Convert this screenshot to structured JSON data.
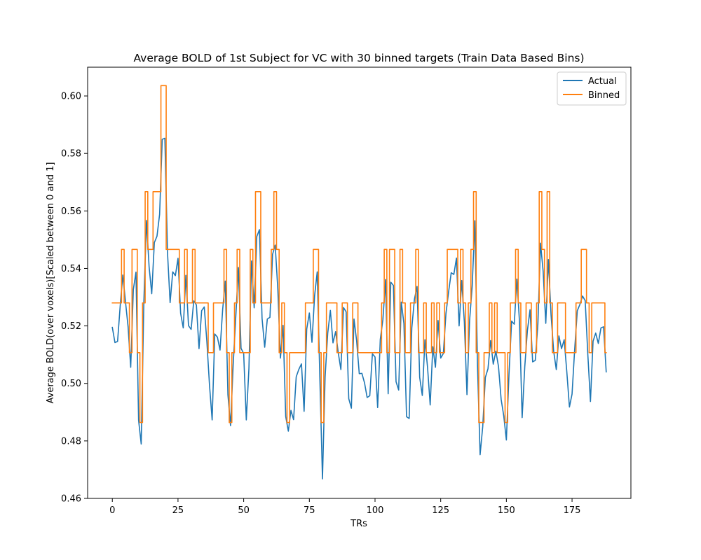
{
  "chart_data": {
    "type": "line",
    "title": "Average BOLD of 1st Subject for VC with 30 binned targets (Train Data Based Bins)",
    "xlabel": "TRs",
    "ylabel": "Average BOLD(over voxels)[Scaled between 0 and 1]",
    "xlim": [
      -9.4,
      197.4
    ],
    "ylim": [
      0.46,
      0.61
    ],
    "xticks": [
      0,
      25,
      50,
      75,
      100,
      125,
      150,
      175
    ],
    "xtick_labels": [
      "0",
      "25",
      "50",
      "75",
      "100",
      "125",
      "150",
      "175"
    ],
    "yticks": [
      0.46,
      0.48,
      0.5,
      0.52,
      0.54,
      0.56,
      0.58,
      0.6
    ],
    "ytick_labels": [
      "0.46",
      "0.48",
      "0.50",
      "0.52",
      "0.54",
      "0.56",
      "0.58",
      "0.60"
    ],
    "grid": false,
    "legend_position": "top-right",
    "series": [
      {
        "name": "Actual",
        "color": "#1f77b4",
        "step": false,
        "values": [
          0.5195,
          0.5142,
          0.5146,
          0.527,
          0.5377,
          0.5285,
          0.5197,
          0.5056,
          0.5327,
          0.5387,
          0.4872,
          0.4789,
          0.5283,
          0.5567,
          0.5406,
          0.5312,
          0.549,
          0.5512,
          0.5588,
          0.5849,
          0.5853,
          0.5456,
          0.5281,
          0.5388,
          0.5375,
          0.5435,
          0.5244,
          0.5193,
          0.5376,
          0.5201,
          0.5188,
          0.5287,
          0.5273,
          0.5121,
          0.5253,
          0.5266,
          0.5144,
          0.4993,
          0.4873,
          0.5172,
          0.5161,
          0.5116,
          0.5257,
          0.5356,
          0.4961,
          0.4853,
          0.5064,
          0.5232,
          0.5403,
          0.5122,
          0.5104,
          0.4873,
          0.5052,
          0.5426,
          0.5263,
          0.5511,
          0.5535,
          0.5226,
          0.5126,
          0.5224,
          0.523,
          0.5449,
          0.5481,
          0.5328,
          0.5088,
          0.5202,
          0.4885,
          0.4834,
          0.4906,
          0.4874,
          0.5023,
          0.5049,
          0.5068,
          0.4903,
          0.5189,
          0.5245,
          0.5143,
          0.5305,
          0.5388,
          0.5017,
          0.4668,
          0.5023,
          0.5175,
          0.5254,
          0.5141,
          0.518,
          0.5107,
          0.5048,
          0.5264,
          0.5249,
          0.4947,
          0.4914,
          0.5224,
          0.5148,
          0.5034,
          0.5035,
          0.5002,
          0.4951,
          0.4957,
          0.5103,
          0.5092,
          0.4916,
          0.5153,
          0.5222,
          0.5361,
          0.4964,
          0.5352,
          0.5341,
          0.5006,
          0.4977,
          0.5283,
          0.5208,
          0.4884,
          0.4878,
          0.5193,
          0.5293,
          0.5337,
          0.5021,
          0.4958,
          0.5152,
          0.5055,
          0.4925,
          0.5128,
          0.5056,
          0.5219,
          0.5088,
          0.5104,
          0.5243,
          0.5318,
          0.5385,
          0.5379,
          0.5436,
          0.52,
          0.5358,
          0.5214,
          0.4961,
          0.5219,
          0.534,
          0.5566,
          0.5065,
          0.4752,
          0.485,
          0.5021,
          0.5051,
          0.5149,
          0.5067,
          0.5112,
          0.5059,
          0.4945,
          0.4887,
          0.4803,
          0.5033,
          0.5217,
          0.5206,
          0.5363,
          0.5213,
          0.4881,
          0.5058,
          0.5184,
          0.5256,
          0.5075,
          0.508,
          0.5207,
          0.5488,
          0.5389,
          0.5209,
          0.5431,
          0.5239,
          0.5112,
          0.5048,
          0.5165,
          0.5121,
          0.5152,
          0.5041,
          0.4918,
          0.4963,
          0.5119,
          0.5253,
          0.5275,
          0.5304,
          0.5288,
          0.5101,
          0.4937,
          0.5147,
          0.5175,
          0.5139,
          0.5193,
          0.5197,
          0.504
        ]
      },
      {
        "name": "Binned",
        "color": "#ff7f0e",
        "step": true,
        "values": [
          0.528,
          0.528,
          0.528,
          0.528,
          0.5466,
          0.528,
          0.528,
          0.5107,
          0.5466,
          0.5466,
          0.5107,
          0.4864,
          0.528,
          0.5667,
          0.5466,
          0.5466,
          0.5667,
          0.5667,
          0.5667,
          0.6036,
          0.6036,
          0.5466,
          0.5466,
          0.5466,
          0.5466,
          0.5466,
          0.528,
          0.528,
          0.5466,
          0.528,
          0.528,
          0.5466,
          0.528,
          0.528,
          0.528,
          0.528,
          0.528,
          0.5107,
          0.5107,
          0.528,
          0.528,
          0.528,
          0.528,
          0.5466,
          0.5107,
          0.4864,
          0.5107,
          0.528,
          0.5466,
          0.5107,
          0.5107,
          0.5107,
          0.5107,
          0.5466,
          0.528,
          0.5667,
          0.5667,
          0.528,
          0.528,
          0.528,
          0.528,
          0.5466,
          0.5667,
          0.5466,
          0.5107,
          0.528,
          0.5107,
          0.4864,
          0.5107,
          0.5107,
          0.5107,
          0.5107,
          0.5107,
          0.5107,
          0.528,
          0.528,
          0.528,
          0.5466,
          0.5466,
          0.5107,
          0.4864,
          0.5107,
          0.528,
          0.528,
          0.528,
          0.528,
          0.5107,
          0.5107,
          0.528,
          0.528,
          0.5107,
          0.5107,
          0.528,
          0.528,
          0.5107,
          0.5107,
          0.5107,
          0.5107,
          0.5107,
          0.5107,
          0.5107,
          0.5107,
          0.5107,
          0.528,
          0.5466,
          0.5107,
          0.5466,
          0.5466,
          0.5107,
          0.5107,
          0.5466,
          0.528,
          0.5107,
          0.5107,
          0.528,
          0.528,
          0.5466,
          0.5107,
          0.5107,
          0.528,
          0.5107,
          0.5107,
          0.528,
          0.5107,
          0.528,
          0.5107,
          0.5107,
          0.528,
          0.5466,
          0.5466,
          0.5466,
          0.5466,
          0.528,
          0.5466,
          0.528,
          0.5107,
          0.528,
          0.5466,
          0.5667,
          0.5107,
          0.4864,
          0.4864,
          0.5107,
          0.5107,
          0.528,
          0.5107,
          0.528,
          0.5107,
          0.5107,
          0.5107,
          0.4864,
          0.5107,
          0.528,
          0.528,
          0.5466,
          0.528,
          0.5107,
          0.5107,
          0.528,
          0.528,
          0.5107,
          0.5107,
          0.528,
          0.5667,
          0.5466,
          0.528,
          0.5667,
          0.528,
          0.5107,
          0.5107,
          0.528,
          0.528,
          0.528,
          0.5107,
          0.5107,
          0.5107,
          0.5107,
          0.528,
          0.528,
          0.5466,
          0.5466,
          0.528,
          0.5107,
          0.528,
          0.528,
          0.528,
          0.528,
          0.528,
          0.5107
        ]
      }
    ]
  }
}
